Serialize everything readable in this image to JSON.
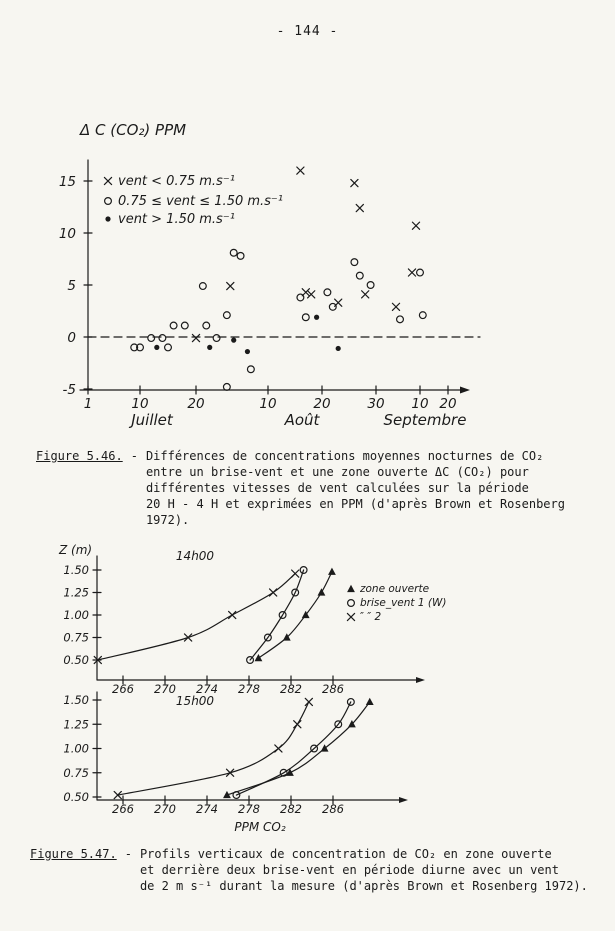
{
  "page": {
    "number": "- 144 -"
  },
  "figure546": {
    "label": "Figure 5.46.",
    "separator": "-",
    "caption_lines": [
      "Différences de concentrations moyennes nocturnes de CO₂",
      "entre un brise-vent et une zone ouverte ΔC (CO₂) pour",
      "différentes vitesses de vent calculées sur la période",
      "20 H - 4 H et exprimées en PPM (d'après Brown et Rosenberg",
      "1972)."
    ]
  },
  "figure547": {
    "label": "Figure 5.47.",
    "separator": "-",
    "caption_lines": [
      "Profils verticaux de concentration de CO₂ en zone ouverte",
      "et derrière deux brise-vent en période diurne avec un vent",
      "de 2 m s⁻¹ durant la mesure (d'après Brown et Rosenberg 1972)."
    ]
  },
  "chart_data": [
    {
      "type": "scatter",
      "name": "fig-5-46-scatter",
      "ylabel": "Δ C (CO₂)  PPM",
      "ylim": [
        -5,
        17
      ],
      "yticks": [
        15,
        10,
        5,
        0,
        -5
      ],
      "zero_line": "dashed",
      "x_axis": {
        "unit": "date",
        "months": [
          {
            "name": "Juillet",
            "ticks": [
              1,
              10,
              20
            ]
          },
          {
            "name": "Août",
            "ticks": [
              10,
              20,
              30
            ]
          },
          {
            "name": "Septembre",
            "ticks": [
              10,
              20
            ]
          }
        ]
      },
      "series": [
        {
          "name": "vent < 0.75 m.s⁻¹",
          "marker": "x",
          "points": [
            [
              "20/07",
              -0.1
            ],
            [
              "30/07",
              4.9
            ],
            [
              "16/08",
              16
            ],
            [
              "17/08",
              4.3
            ],
            [
              "18/08",
              4.1
            ],
            [
              "23/08",
              3.3
            ],
            [
              "26/08",
              14.8
            ],
            [
              "27/08",
              12.4
            ],
            [
              "28/08",
              4.1
            ],
            [
              "04/09",
              2.9
            ],
            [
              "08/09",
              6.2
            ],
            [
              "09/09",
              10.7
            ]
          ]
        },
        {
          "name": "0.75 ≤ vent ≤ 1.50 m.s⁻¹",
          "marker": "o",
          "points": [
            [
              "09/07",
              -1
            ],
            [
              "10/07",
              -1
            ],
            [
              "12/07",
              -0.1
            ],
            [
              "14/07",
              -0.1
            ],
            [
              "15/07",
              -1
            ],
            [
              "16/07",
              1.1
            ],
            [
              "18/07",
              1.1
            ],
            [
              "22/07",
              4.9
            ],
            [
              "23/07",
              1.1
            ],
            [
              "26/07",
              -0.1
            ],
            [
              "29/07",
              2.1
            ],
            [
              "29/07",
              -4.8
            ],
            [
              "31/07",
              8.1
            ],
            [
              "02/08",
              7.8
            ],
            [
              "05/08",
              -3.1
            ],
            [
              "16/08",
              3.8
            ],
            [
              "17/08",
              1.9
            ],
            [
              "21/08",
              4.3
            ],
            [
              "22/08",
              2.9
            ],
            [
              "26/08",
              7.2
            ],
            [
              "27/08",
              5.9
            ],
            [
              "29/08",
              5
            ],
            [
              "05/09",
              1.7
            ],
            [
              "10/09",
              6.2
            ],
            [
              "11/09",
              2.1
            ]
          ]
        },
        {
          "name": "vent > 1.50 m.s⁻¹",
          "marker": "dot",
          "points": [
            [
              "13/07",
              -1
            ],
            [
              "24/07",
              -1
            ],
            [
              "31/07",
              -0.3
            ],
            [
              "04/08",
              -1.4
            ],
            [
              "19/08",
              1.9
            ],
            [
              "23/08",
              -1.1
            ]
          ]
        }
      ]
    },
    {
      "type": "line",
      "name": "fig-5-47-profile-14h",
      "title": "14h00",
      "ylabel": "Z (m)",
      "yticks": [
        "1.50",
        "1.25",
        "1.00",
        "0.75",
        "0.50"
      ],
      "xticks": [
        266,
        270,
        274,
        278,
        282,
        286
      ],
      "series": [
        {
          "name": "zone ouverte",
          "marker": "triangle",
          "points": [
            [
              278.9,
              0.52
            ],
            [
              281.6,
              0.75
            ],
            [
              283.4,
              1.0
            ],
            [
              284.9,
              1.25
            ],
            [
              285.9,
              1.48
            ]
          ]
        },
        {
          "name": "brise-vent 1 (W)",
          "marker": "o",
          "points": [
            [
              278.1,
              0.5
            ],
            [
              279.8,
              0.75
            ],
            [
              281.2,
              1.0
            ],
            [
              282.4,
              1.25
            ],
            [
              283.2,
              1.5
            ]
          ]
        },
        {
          "name": "brise-vent 2",
          "marker": "x",
          "points": [
            [
              263.6,
              0.5
            ],
            [
              272.2,
              0.75
            ],
            [
              276.4,
              1.0
            ],
            [
              280.3,
              1.25
            ],
            [
              282.4,
              1.46
            ]
          ]
        }
      ],
      "legend": [
        {
          "marker": "triangle",
          "label": "zone ouverte"
        },
        {
          "marker": "o",
          "label": "brise_vent 1 (W)"
        },
        {
          "marker": "x",
          "label": "″    ″    2"
        }
      ]
    },
    {
      "type": "line",
      "name": "fig-5-47-profile-15h",
      "title": "15h00",
      "xlabel": "PPM   CO₂",
      "yticks": [
        "1.50",
        "1.25",
        "1.00",
        "0.75",
        "0.50"
      ],
      "xticks": [
        266,
        270,
        274,
        278,
        282,
        286
      ],
      "series": [
        {
          "name": "zone ouverte",
          "marker": "triangle",
          "points": [
            [
              275.9,
              0.52
            ],
            [
              281.9,
              0.75
            ],
            [
              285.2,
              1.0
            ],
            [
              287.8,
              1.25
            ],
            [
              289.5,
              1.48
            ]
          ]
        },
        {
          "name": "brise-vent 1 (W)",
          "marker": "o",
          "points": [
            [
              276.8,
              0.52
            ],
            [
              281.3,
              0.75
            ],
            [
              284.2,
              1.0
            ],
            [
              286.5,
              1.25
            ],
            [
              287.7,
              1.48
            ]
          ]
        },
        {
          "name": "brise-vent 2",
          "marker": "x",
          "points": [
            [
              265.5,
              0.52
            ],
            [
              276.2,
              0.75
            ],
            [
              280.8,
              1.0
            ],
            [
              282.6,
              1.25
            ],
            [
              283.7,
              1.48
            ]
          ]
        }
      ]
    }
  ]
}
